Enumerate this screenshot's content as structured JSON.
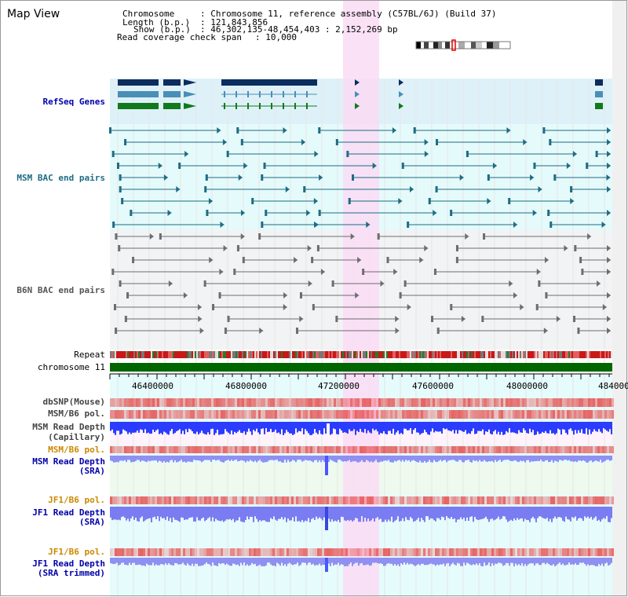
{
  "page": {
    "title": "Map View"
  },
  "header": {
    "chromosome_label": "Chromosome",
    "chromosome_value": ": Chromosome 11, reference assembly (C57BL/6J) (Build 37)",
    "length_label": "Length (b.p.)",
    "length_value": ": 121,843,856",
    "show_label": "Show (b.p.)",
    "show_value": ": 46,302,135-48,454,403 : 2,152,269 bp",
    "coverage_label": "Read coverage check span",
    "coverage_value": ": 10,000"
  },
  "tracks": {
    "refseq": "RefSeq Genes",
    "msm_bac": "MSM BAC end pairs",
    "b6n_bac": "B6N BAC end pairs",
    "repeat": "Repeat",
    "chromosome": "chromosome 11",
    "dbsnp": "dbSNP(Mouse)",
    "msm_b6_pol": "MSM/B6 pol.",
    "msm_read_depth_cap_1": "MSM Read Depth",
    "msm_read_depth_cap_2": "(Capillary)",
    "msm_b6_pol_2": "MSM/B6 pol.",
    "msm_read_depth_sra_1": "MSM Read Depth",
    "msm_read_depth_sra_2": "(SRA)",
    "jf1_b6_pol": "JF1/B6 pol.",
    "jf1_read_depth_1": "JF1 Read Depth",
    "jf1_read_depth_2": "(SRA)",
    "jf1_b6_pol_2": "JF1/B6 pol.",
    "jf1_read_depth_trim_1": "JF1 Read Depth",
    "jf1_read_depth_trim_2": "(SRA trimmed)"
  },
  "axis": {
    "ticks": [
      "46400000",
      "46800000",
      "47200000",
      "47600000",
      "48000000",
      "484000"
    ]
  },
  "colors": {
    "refseq_bg": "#def1f9",
    "msm_bg": "#e5fafa",
    "b6n_bg": "#f2f3f4",
    "lower_bg": "#e6fbfb",
    "highlight": "#fadcf5",
    "refseq_dark": "#0b2d5e",
    "refseq_mid": "#4a8fb6",
    "refseq_green": "#117a1c",
    "msm_bac": "#1d6c84",
    "b6n_bac": "#6d6d6d",
    "chromosome": "#006600",
    "depth_blue": "#3344ff",
    "depth_light": "#8a8cf0",
    "label_blue": "#0000aa",
    "label_orange": "#cc8800",
    "label_gray": "#444444"
  }
}
